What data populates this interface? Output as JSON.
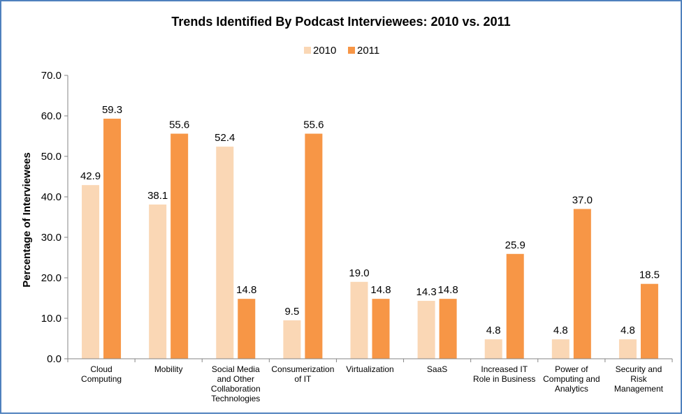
{
  "chart_data": {
    "type": "bar",
    "title": "Trends Identified By Podcast Interviewees: 2010 vs. 2011",
    "xlabel": "",
    "ylabel": "Percentage of Interviewees",
    "ylim": [
      0,
      70
    ],
    "yticks": [
      "0.0",
      "10.0",
      "20.0",
      "30.0",
      "40.0",
      "50.0",
      "60.0",
      "70.0"
    ],
    "grid": false,
    "legend_position": "top-center",
    "categories": [
      [
        "Cloud",
        "Computing"
      ],
      [
        "Mobility"
      ],
      [
        "Social Media",
        "and Other",
        "Collaboration",
        "Technologies"
      ],
      [
        "Consumerization",
        "of IT"
      ],
      [
        "Virtualization"
      ],
      [
        "SaaS"
      ],
      [
        "Increased IT",
        "Role in Business"
      ],
      [
        "Power of",
        "Computing and",
        "Analytics"
      ],
      [
        "Security and",
        "Risk",
        "Management"
      ]
    ],
    "series": [
      {
        "name": "2010",
        "color": "#fad7b5",
        "values": [
          42.9,
          38.1,
          52.4,
          9.5,
          19.0,
          14.3,
          4.8,
          4.8,
          4.8
        ],
        "labels": [
          "42.9",
          "38.1",
          "52.4",
          "9.5",
          "19.0",
          "14.3",
          "4.8",
          "4.8",
          "4.8"
        ]
      },
      {
        "name": "2011",
        "color": "#f79646",
        "values": [
          59.3,
          55.6,
          14.8,
          55.6,
          14.8,
          14.8,
          25.9,
          37.0,
          18.5
        ],
        "labels": [
          "59.3",
          "55.6",
          "14.8",
          "55.6",
          "14.8",
          "14.8",
          "25.9",
          "37.0",
          "18.5"
        ]
      }
    ]
  }
}
